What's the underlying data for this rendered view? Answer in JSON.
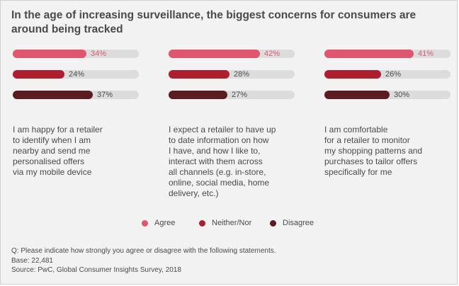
{
  "title": "In the age of increasing surveillance, the biggest concerns for consumers are around being tracked",
  "colors": {
    "agree": "#e0566e",
    "neither": "#ad1f2f",
    "disagree": "#5a1c20",
    "track": "#dcdcdc"
  },
  "chart_data": {
    "type": "bar",
    "title": "In the age of increasing surveillance, the biggest concerns for consumers are around being tracked",
    "categories": [
      "I am happy for a retailer to identify when I am nearby and send me personalised offers via my mobile device",
      "I expect a retailer to have up to date information on how I have, and how I like to, interact with them across all channels (e.g. in-store, online, social media, home delivery, etc.)",
      "I am comfortable for a retailer to monitor my shopping patterns and purchases to tailor offers specifically for me"
    ],
    "series": [
      {
        "name": "Agree",
        "values": [
          34,
          42,
          41
        ]
      },
      {
        "name": "Neither/Nor",
        "values": [
          24,
          28,
          26
        ]
      },
      {
        "name": "Disagree",
        "values": [
          37,
          27,
          30
        ]
      }
    ],
    "value_labels": [
      [
        "34%",
        "24%",
        "37%"
      ],
      [
        "42%",
        "28%",
        "27%"
      ],
      [
        "41%",
        "26%",
        "30%"
      ]
    ],
    "ylim": [
      0,
      100
    ],
    "legend": "bottom"
  },
  "statements": [
    [
      "I am happy for a retailer",
      "to identify when I am",
      "nearby and send me",
      "personalised offers",
      "via my mobile device"
    ],
    [
      "I expect a retailer to have up",
      "to date information on how",
      "I have, and how I like to,",
      "interact with them across",
      "all channels (e.g. in-store,",
      "online, social media, home",
      "delivery, etc.)"
    ],
    [
      "I am comfortable",
      "for a retailer to monitor",
      "my shopping patterns and",
      "purchases to tailor offers",
      "specifically for me"
    ]
  ],
  "legend": [
    {
      "label": "Agree",
      "color": "#e0566e"
    },
    {
      "label": "Neither/Nor",
      "color": "#ad1f2f"
    },
    {
      "label": "Disagree",
      "color": "#5a1c20"
    }
  ],
  "footer": {
    "question": "Q: Please indicate how strongly you agree or disagree with the following statements.",
    "base": "Base: 22,481",
    "source": "Source: PwC, Global Consumer Insights Survey, 2018"
  }
}
